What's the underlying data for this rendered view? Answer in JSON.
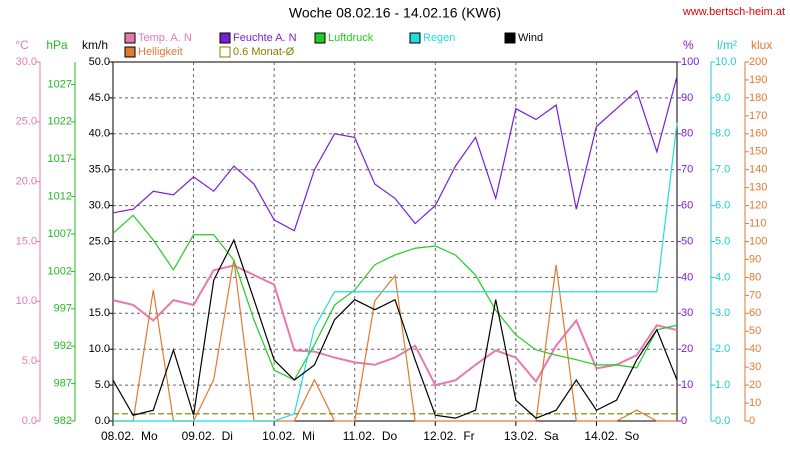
{
  "chart_data": {
    "type": "line",
    "title": "Woche 08.02.16 - 14.02.16 (KW6)",
    "source": "www.bertsch-heim.at",
    "xlim": [
      0,
      7
    ],
    "xticks": [
      {
        "value": 0,
        "label": "08.02.  Mo"
      },
      {
        "value": 1,
        "label": "09.02.  Di"
      },
      {
        "value": 2,
        "label": "10.02.  Mi"
      },
      {
        "value": 3,
        "label": "11.02.  Do"
      },
      {
        "value": 4,
        "label": "12.02.  Fr"
      },
      {
        "value": 5,
        "label": "13.02.  Sa"
      },
      {
        "value": 6,
        "label": "14.02.  So"
      }
    ],
    "grid": true,
    "axes": [
      {
        "unit": "°C",
        "side": "left",
        "color": "#e879b0",
        "lim": [
          0,
          30
        ],
        "ticks": [
          {
            "value": 0,
            "label": "0.0"
          },
          {
            "value": 5,
            "label": "5.0"
          },
          {
            "value": 10,
            "label": "10.0"
          },
          {
            "value": 15,
            "label": "15.0"
          },
          {
            "value": 20,
            "label": "20.0"
          },
          {
            "value": 25,
            "label": "25.0"
          },
          {
            "value": 30,
            "label": "30.0"
          }
        ]
      },
      {
        "unit": "hPa",
        "side": "left",
        "color": "#22bb22",
        "lim": [
          982,
          1030
        ],
        "ticks": [
          982,
          987,
          992,
          997,
          1002,
          1007,
          1012,
          1017,
          1022,
          1027
        ]
      },
      {
        "unit": "km/h",
        "side": "left",
        "color": "#000000",
        "lim": [
          0,
          50
        ],
        "ticks": [
          {
            "value": 0,
            "label": "0.0"
          },
          {
            "value": 5,
            "label": "5.0"
          },
          {
            "value": 10,
            "label": "10.0"
          },
          {
            "value": 15,
            "label": "15.0"
          },
          {
            "value": 20,
            "label": "20.0"
          },
          {
            "value": 25,
            "label": "25.0"
          },
          {
            "value": 30,
            "label": "30.0"
          },
          {
            "value": 35,
            "label": "35.0"
          },
          {
            "value": 40,
            "label": "40.0"
          },
          {
            "value": 45,
            "label": "45.0"
          },
          {
            "value": 50,
            "label": "50.0"
          }
        ]
      },
      {
        "unit": "%",
        "side": "right",
        "color": "#7a1fd6",
        "lim": [
          0,
          100
        ],
        "ticks": [
          0,
          10,
          20,
          30,
          40,
          50,
          60,
          70,
          80,
          90,
          100
        ]
      },
      {
        "unit": "l/m²",
        "side": "right",
        "color": "#22cccc",
        "lim": [
          0,
          10
        ],
        "ticks": [
          {
            "value": 0,
            "label": "0.0"
          },
          {
            "value": 1,
            "label": "1.0"
          },
          {
            "value": 2,
            "label": "2.0"
          },
          {
            "value": 3,
            "label": "3.0"
          },
          {
            "value": 4,
            "label": "4.0"
          },
          {
            "value": 5,
            "label": "5.0"
          },
          {
            "value": 6,
            "label": "6.0"
          },
          {
            "value": 7,
            "label": "7.0"
          },
          {
            "value": 8,
            "label": "8.0"
          },
          {
            "value": 9,
            "label": "9.0"
          },
          {
            "value": 10,
            "label": "10.0"
          }
        ]
      },
      {
        "unit": "klux",
        "side": "right",
        "color": "#e07a30",
        "lim": [
          0,
          200
        ],
        "ticks": [
          0,
          10,
          20,
          30,
          40,
          50,
          60,
          70,
          80,
          90,
          100,
          110,
          120,
          130,
          140,
          150,
          160,
          170,
          180,
          190,
          200
        ]
      }
    ],
    "x": [
      0,
      0.25,
      0.5,
      0.75,
      1,
      1.25,
      1.5,
      1.75,
      2,
      2.25,
      2.5,
      2.75,
      3,
      3.25,
      3.5,
      3.75,
      4,
      4.25,
      4.5,
      4.75,
      5,
      5.25,
      5.5,
      5.75,
      6,
      6.25,
      6.5,
      6.75,
      7
    ],
    "series": [
      {
        "name": "Temp. A. N",
        "color": "#e879b0",
        "axis": 0,
        "values": [
          10.1,
          9.7,
          8.4,
          10.1,
          9.7,
          12.6,
          13,
          12.2,
          11.4,
          5.9,
          5.8,
          5.3,
          4.9,
          4.7,
          5.3,
          6.3,
          3,
          3.4,
          4.7,
          5.9,
          5.3,
          3.3,
          6.3,
          8.4,
          4.4,
          4.7,
          5.5,
          8,
          7.6
        ]
      },
      {
        "name": "Helligkeit",
        "color": "#e07a30",
        "axis": 5,
        "values": [
          0,
          0,
          73,
          0,
          0,
          23,
          90,
          0,
          0,
          0,
          23,
          0,
          0,
          67,
          81,
          0,
          0,
          0,
          0,
          0,
          0,
          0,
          87,
          0,
          0,
          0,
          6,
          0,
          0
        ]
      },
      {
        "name": "Feuchte A. N",
        "color": "#7a1fd6",
        "axis": 3,
        "values": [
          58,
          59,
          64,
          63,
          68,
          64,
          71,
          66,
          56,
          53,
          70,
          80,
          79,
          66,
          62,
          55,
          60,
          71,
          79,
          62,
          87,
          84,
          88,
          59,
          82,
          87,
          92,
          75,
          96
        ]
      },
      {
        "name": "0.6 Monat-Ø",
        "color": "#808000",
        "axis": 5,
        "dash": true,
        "values": [
          4,
          4,
          4,
          4,
          4,
          4,
          4,
          4,
          4,
          4,
          4,
          4,
          4,
          4,
          4,
          4,
          4,
          4,
          4,
          4,
          4,
          4,
          4,
          4,
          4,
          4,
          4,
          4,
          4
        ]
      },
      {
        "name": "Luftdruck",
        "color": "#22cc22",
        "axis": 1,
        "values": [
          1007.1,
          1009.5,
          1006.2,
          1002.2,
          1006.9,
          1006.9,
          1003.5,
          995.5,
          988.8,
          987.5,
          992.2,
          997.5,
          999.5,
          1002.9,
          1004.2,
          1005.1,
          1005.4,
          1004.2,
          1001.5,
          996.8,
          993.5,
          991.5,
          990.8,
          990.2,
          989.5,
          989.5,
          989.1,
          994.2,
          994.8
        ]
      },
      {
        "name": "Regen",
        "color": "#22dddd",
        "axis": 4,
        "values": [
          0,
          0,
          0,
          0,
          0,
          0,
          0,
          0,
          0,
          0.2,
          2.6,
          3.6,
          3.6,
          3.6,
          3.6,
          3.6,
          3.6,
          3.6,
          3.6,
          3.6,
          3.6,
          3.6,
          3.6,
          3.6,
          3.6,
          3.6,
          3.6,
          3.6,
          8.3
        ]
      },
      {
        "name": "Wind",
        "color": "#000000",
        "axis": 2,
        "values": [
          5.7,
          0.8,
          1.5,
          9.9,
          0.8,
          19.6,
          25.2,
          16.9,
          8.5,
          5.7,
          7.8,
          14.1,
          16.9,
          15.5,
          16.9,
          8.5,
          0.8,
          0.4,
          1.5,
          16.9,
          2.9,
          0.4,
          1.5,
          5.7,
          1.5,
          2.9,
          8.5,
          12.7,
          5.7
        ]
      }
    ]
  }
}
